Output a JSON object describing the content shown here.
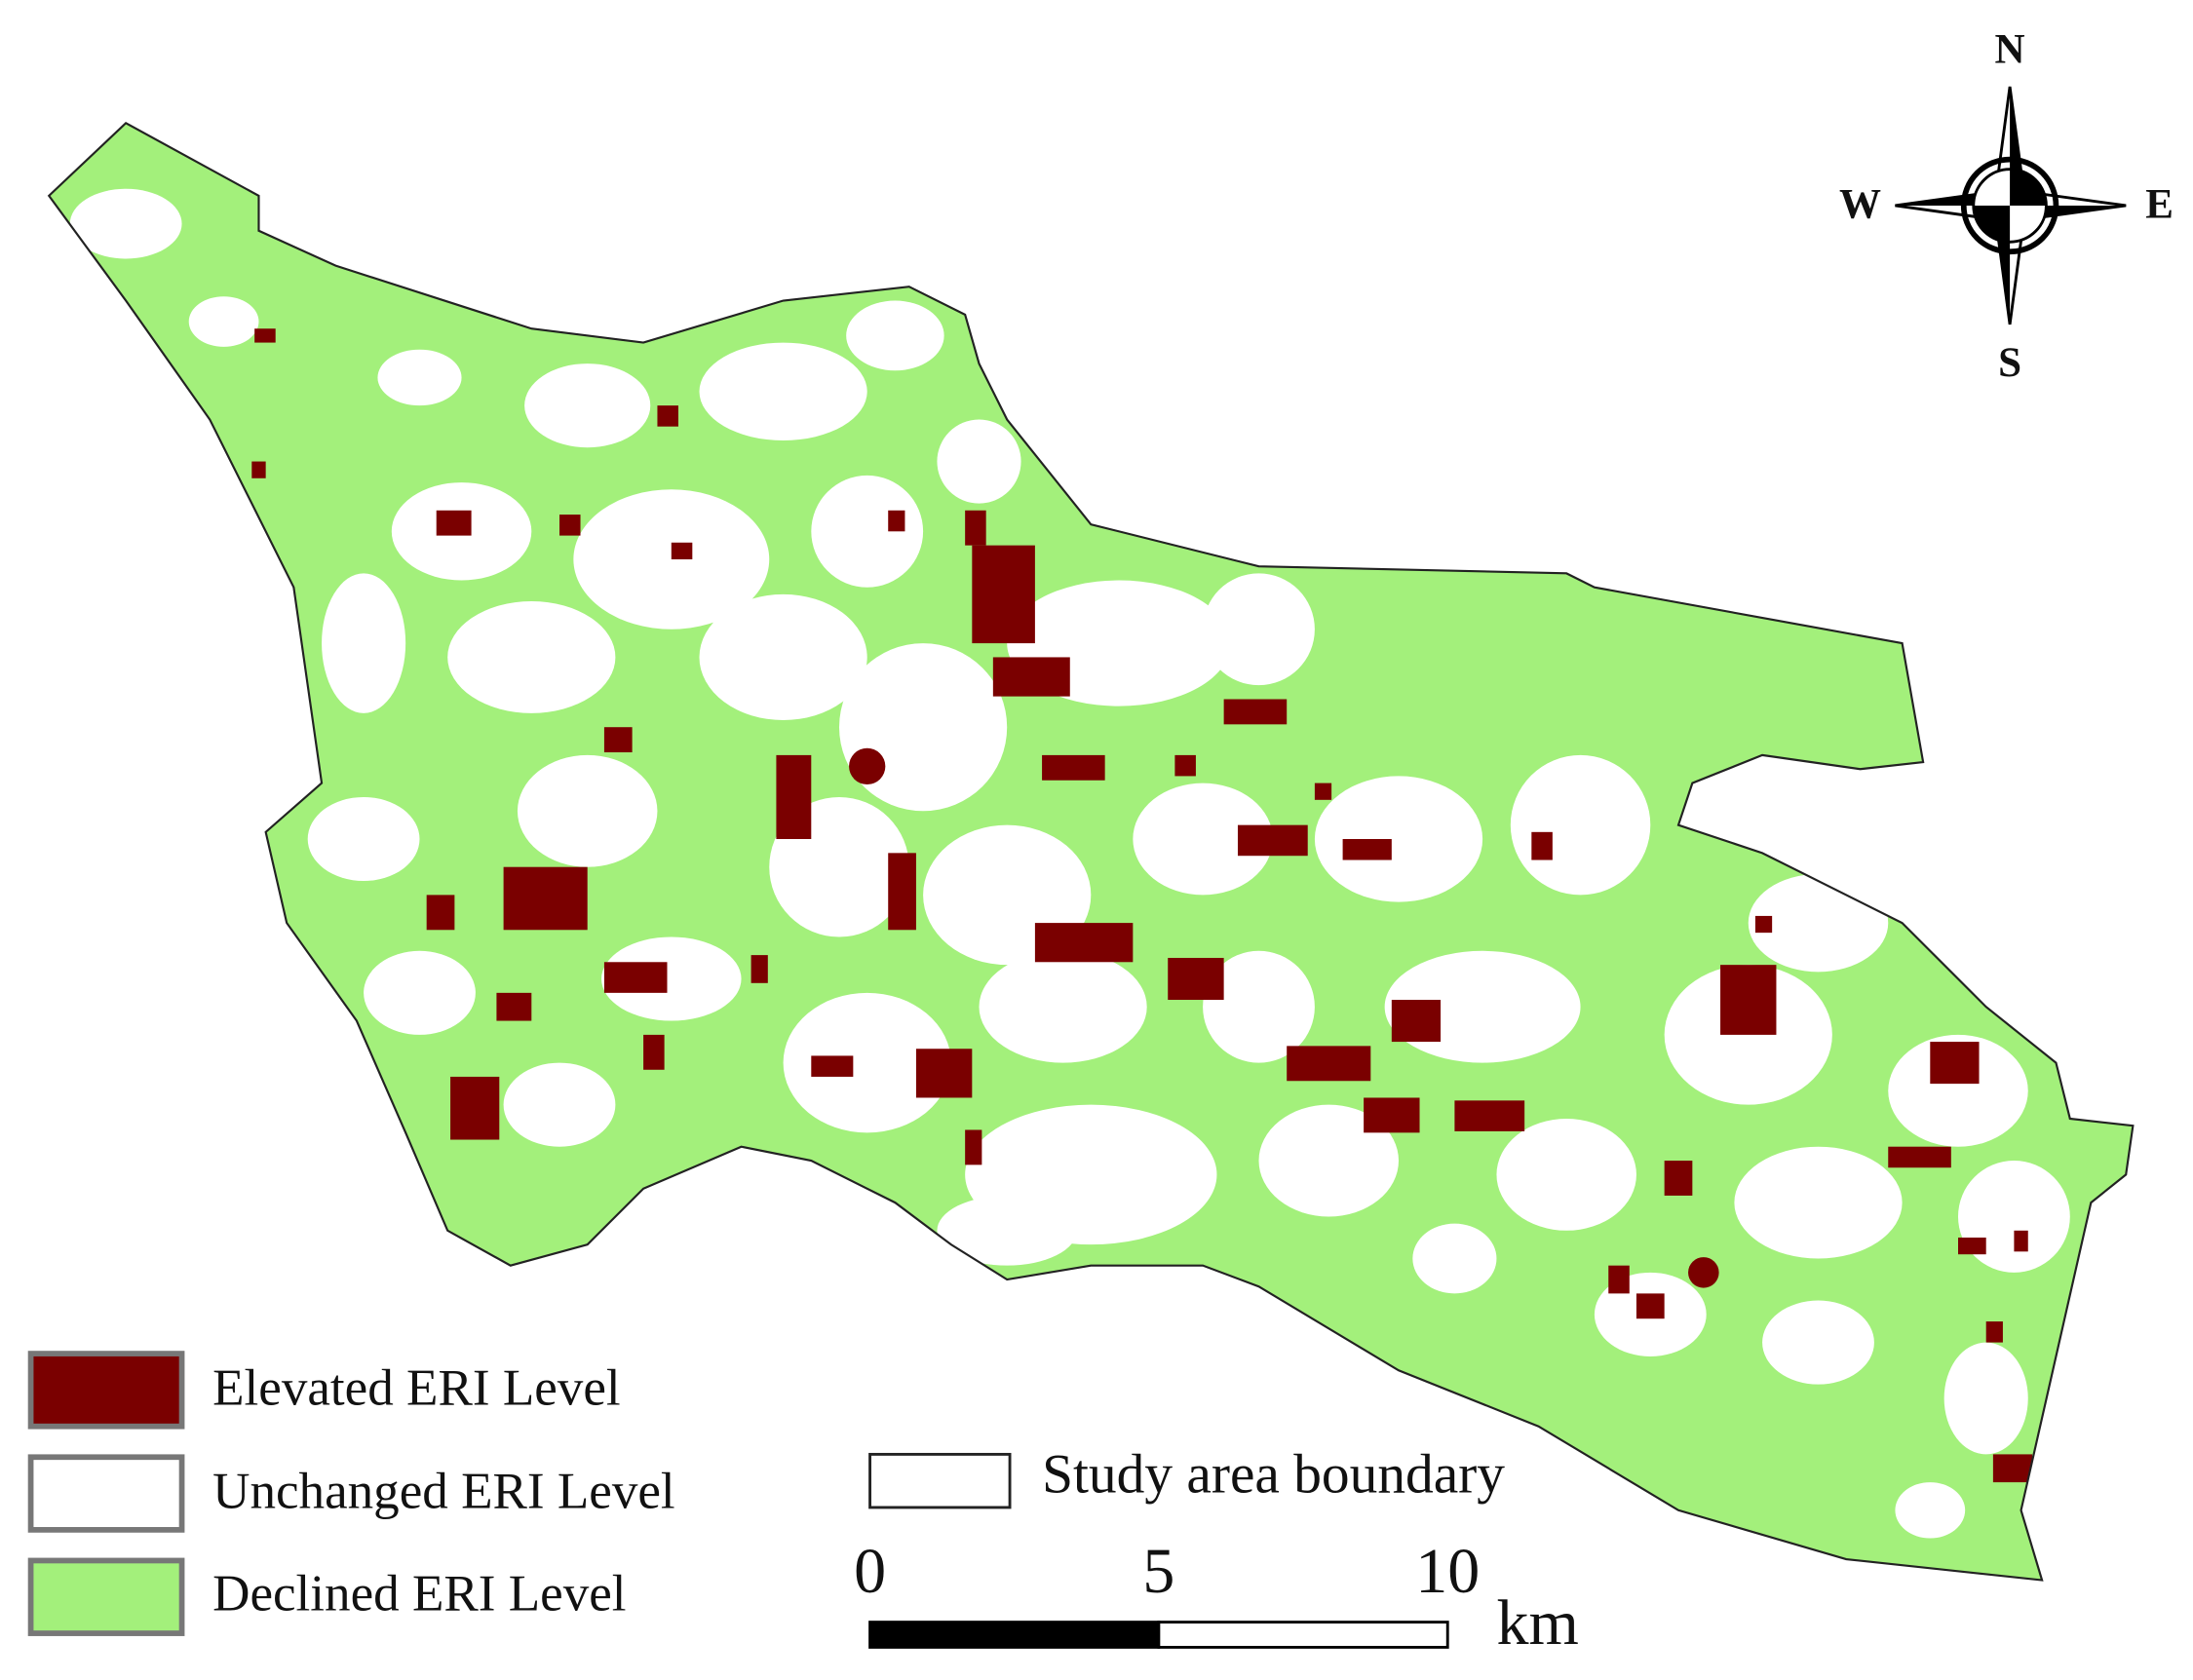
{
  "compass": {
    "north": "N",
    "south": "S",
    "east": "E",
    "west": "W"
  },
  "legend": [
    {
      "label": "Elevated  ERI  Level",
      "color": "#7a0000"
    },
    {
      "label": "Unchanged  ERI  Level",
      "color": "#ffffff"
    },
    {
      "label": "Declined  ERI  Level",
      "color": "#a3f07b"
    }
  ],
  "boundary_legend": "Study area boundary",
  "scale_bar": {
    "ticks": [
      0,
      5,
      10
    ],
    "unit": "km"
  }
}
